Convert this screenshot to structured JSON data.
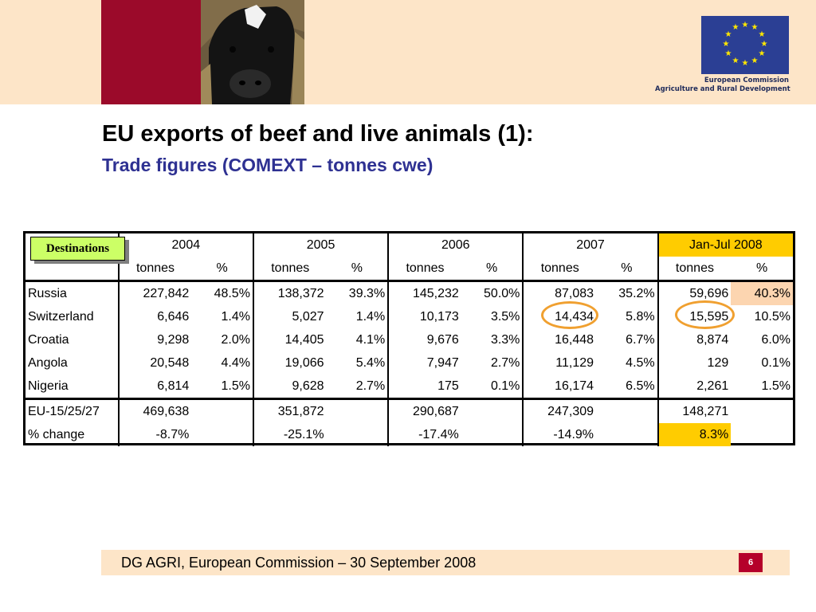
{
  "header": {
    "logo_lines": [
      "European Commission",
      "Agriculture and Rural Development"
    ]
  },
  "title": "EU exports of beef and live animals (1):",
  "subtitle": "Trade figures (COMEXT – tonnes cwe)",
  "destinations_label": "Destinations",
  "table": {
    "years": [
      "2004",
      "2005",
      "2006",
      "2007",
      "Jan-Jul 2008"
    ],
    "subheaders": [
      "tonnes",
      "%"
    ],
    "rows": [
      {
        "label": "Russia",
        "cells": [
          "227,842",
          "48.5%",
          "138,372",
          "39.3%",
          "145,232",
          "50.0%",
          "87,083",
          "35.2%",
          "59,696",
          "40.3%"
        ]
      },
      {
        "label": "Switzerland",
        "cells": [
          "6,646",
          "1.4%",
          "5,027",
          "1.4%",
          "10,173",
          "3.5%",
          "14,434",
          "5.8%",
          "15,595",
          "10.5%"
        ]
      },
      {
        "label": "Croatia",
        "cells": [
          "9,298",
          "2.0%",
          "14,405",
          "4.1%",
          "9,676",
          "3.3%",
          "16,448",
          "6.7%",
          "8,874",
          "6.0%"
        ]
      },
      {
        "label": "Angola",
        "cells": [
          "20,548",
          "4.4%",
          "19,066",
          "5.4%",
          "7,947",
          "2.7%",
          "11,129",
          "4.5%",
          "129",
          "0.1%"
        ]
      },
      {
        "label": "Nigeria",
        "cells": [
          "6,814",
          "1.5%",
          "9,628",
          "2.7%",
          "175",
          "0.1%",
          "16,174",
          "6.5%",
          "2,261",
          "1.5%"
        ]
      }
    ],
    "totals": [
      {
        "label": "EU-15/25/27",
        "cells": [
          "469,638",
          "",
          "351,872",
          "",
          "290,687",
          "",
          "247,309",
          "",
          "148,271",
          ""
        ]
      },
      {
        "label": "% change",
        "cells": [
          "-8.7%",
          "",
          "-25.1%",
          "",
          "-17.4%",
          "",
          "-14.9%",
          "",
          "8.3%",
          ""
        ]
      }
    ]
  },
  "footer": {
    "text": "DG AGRI, European Commission – 30 September 2008",
    "page_number": "6"
  },
  "colors": {
    "header_band": "#fde5c8",
    "maroon": "#9b0a2a",
    "subtitle_blue": "#2e3192",
    "highlight_orange": "#ffcc00",
    "highlight_peach": "#fcd5b0",
    "circle_orange": "#f0a030",
    "page_badge": "#b5002a"
  }
}
